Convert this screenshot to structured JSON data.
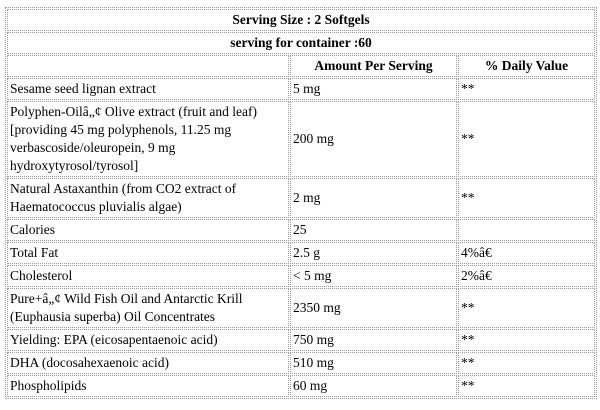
{
  "header": {
    "serving_size": "Serving Size : 2 Softgels",
    "servings_per_container": "serving for container :60"
  },
  "columns": {
    "blank": "",
    "amount": "Amount Per Serving",
    "daily_value": "% Daily Value"
  },
  "rows": [
    {
      "name": "Sesame seed lignan extract",
      "amount": "5 mg",
      "dv": "**"
    },
    {
      "name": "Polyphen-Oilâ„¢ Olive extract (fruit and leaf) [providing 45 mg polyphenols, 11.25 mg verbascoside/oleuropein, 9 mg hydroxytyrosol/tyrosol]",
      "amount": "200 mg",
      "dv": "**"
    },
    {
      "name": "Natural Astaxanthin (from CO2 extract of Haematococcus pluvialis algae)",
      "amount": "2 mg",
      "dv": "**"
    },
    {
      "name": "Calories",
      "amount": "25",
      "dv": ""
    },
    {
      "name": "Total Fat",
      "amount": "2.5 g",
      "dv": "4%â€"
    },
    {
      "name": "Cholesterol",
      "amount": "< 5 mg",
      "dv": "2%â€"
    },
    {
      "name": "Pure+â„¢ Wild Fish Oil and Antarctic Krill (Euphausia superba) Oil Concentrates",
      "amount": "2350 mg",
      "dv": "**"
    },
    {
      "name": "Yielding: EPA (eicosapentaenoic acid)",
      "amount": "750 mg",
      "dv": "**"
    },
    {
      "name": "DHA (docosahexaenoic acid)",
      "amount": "510 mg",
      "dv": "**"
    },
    {
      "name": "Phospholipids",
      "amount": "60 mg",
      "dv": "**"
    }
  ]
}
